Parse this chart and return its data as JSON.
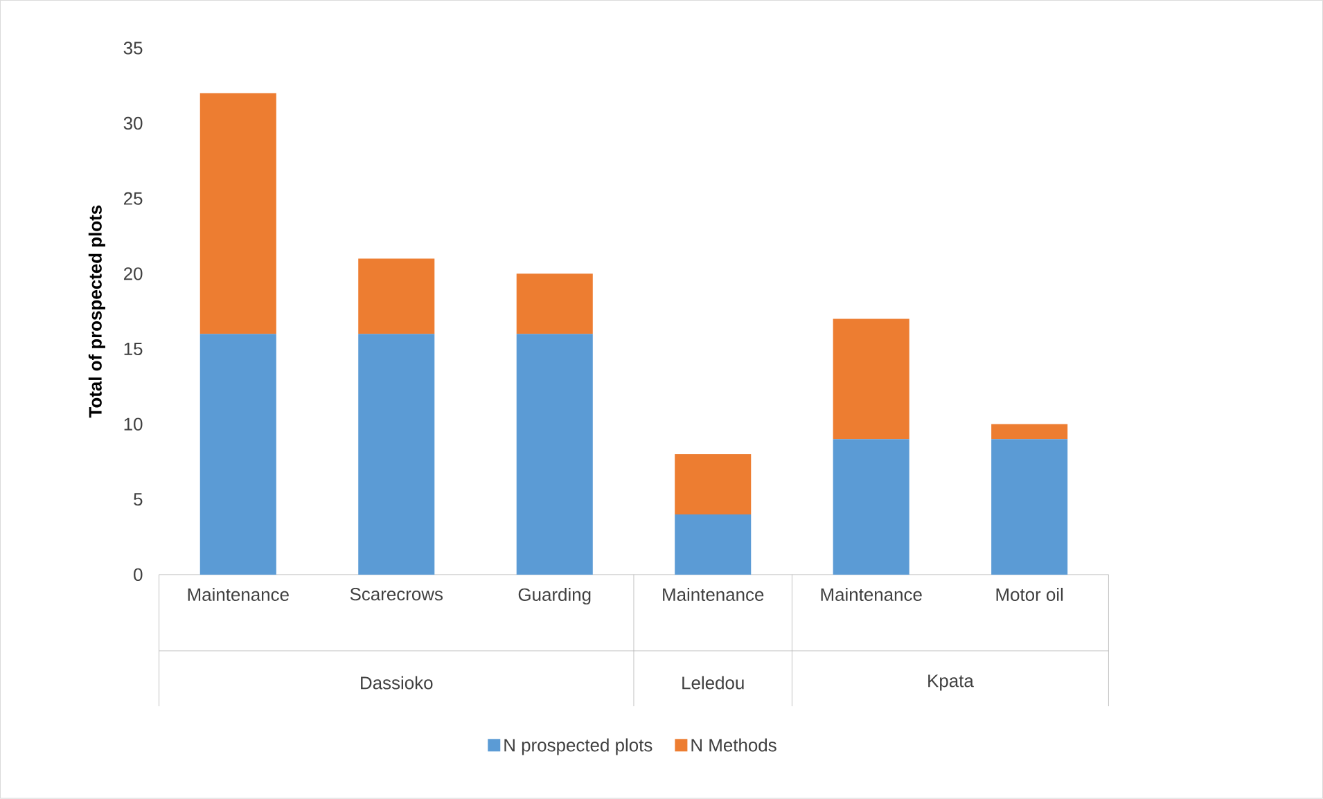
{
  "chart_data": {
    "type": "bar",
    "stacked": true,
    "ylabel": "Total of prospected plots",
    "categories": [
      "Maintenance",
      "Scarecrows",
      "Guarding",
      "Maintenance",
      "Maintenance",
      "Motor oil"
    ],
    "annotations": [
      "Dassioko",
      "Leledou",
      "Kpata"
    ],
    "series": [
      {
        "name": "N prospected plots",
        "color": "#5b9bd5",
        "values": [
          16,
          16,
          16,
          4,
          9,
          9
        ]
      },
      {
        "name": "N Methods",
        "color": "#ed7d31",
        "values": [
          16,
          5,
          4,
          4,
          8,
          1
        ]
      }
    ],
    "ylim": [
      0,
      35
    ],
    "yticks": [
      0,
      5,
      10,
      15,
      20,
      25,
      30,
      35
    ],
    "grid": false,
    "legend": "bottom"
  }
}
